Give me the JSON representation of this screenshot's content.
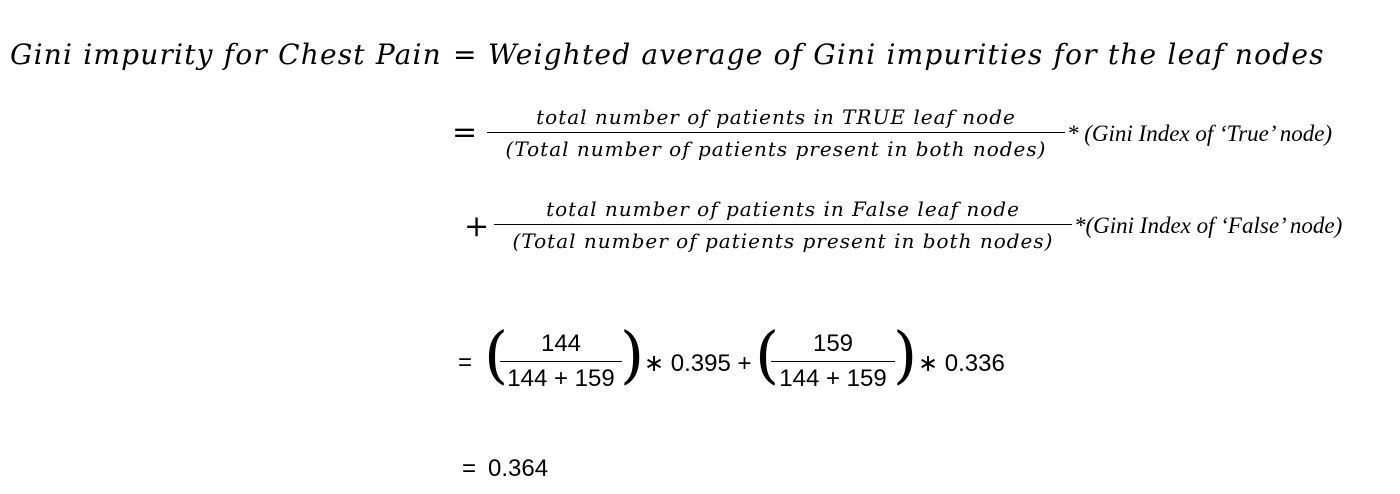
{
  "equation": {
    "lhs": "Gini impurity for Chest Pain",
    "eq_sign": "=",
    "rhs_definition": "Weighted average of Gini impurities for the leaf nodes",
    "term_true": {
      "sign": "=",
      "numerator": "total number of patients in TRUE leaf node",
      "denominator": "(Total number of patients present in both nodes)",
      "multiplier": "* (Gini Index of ‘True’ node)"
    },
    "term_false": {
      "sign": "+",
      "numerator": "total number of patients in False leaf node",
      "denominator": "(Total number of patients present in both nodes)",
      "multiplier": "*(Gini Index of ‘False’ node)"
    },
    "numeric": {
      "sign": "=",
      "frac1_num": "144",
      "frac1_den": "144 + 159",
      "mult1": "∗ 0.395 +",
      "frac2_num": "159",
      "frac2_den": "144 + 159",
      "mult2": "∗ 0.336",
      "open_paren": "(",
      "close_paren": ")"
    },
    "result": {
      "sign": "=",
      "value": "0.364"
    }
  }
}
